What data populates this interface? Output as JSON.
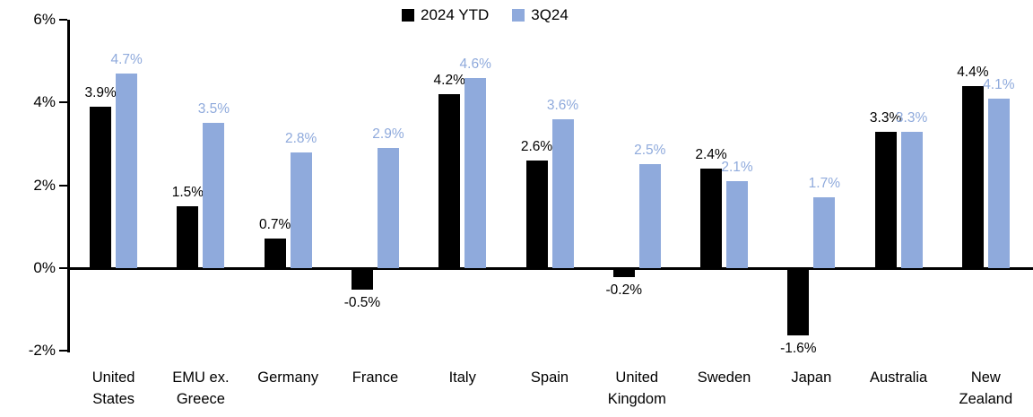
{
  "legend": [
    {
      "label": "2024 YTD",
      "color": "#000000"
    },
    {
      "label": "3Q24",
      "color": "#8FAADC"
    }
  ],
  "chart_data": {
    "type": "bar",
    "title": "",
    "xlabel": "",
    "ylabel": "",
    "categories": [
      "United States",
      "EMU ex. Greece",
      "Germany",
      "France",
      "Italy",
      "Spain",
      "United Kingdom",
      "Sweden",
      "Japan",
      "Australia",
      "New Zealand"
    ],
    "series": [
      {
        "name": "2024 YTD",
        "color": "#000000",
        "values": [
          3.9,
          1.5,
          0.7,
          -0.5,
          4.2,
          2.6,
          -0.2,
          2.4,
          -1.6,
          3.3,
          4.4
        ],
        "labels": [
          "3.9%",
          "1.5%",
          "0.7%",
          "-0.5%",
          "4.2%",
          "2.6%",
          "-0.2%",
          "2.4%",
          "-1.6%",
          "3.3%",
          "4.4%"
        ]
      },
      {
        "name": "3Q24",
        "color": "#8FAADC",
        "values": [
          4.7,
          3.5,
          2.8,
          2.9,
          4.6,
          3.6,
          2.5,
          2.1,
          1.7,
          3.3,
          4.1
        ],
        "labels": [
          "4.7%",
          "3.5%",
          "2.8%",
          "2.9%",
          "4.6%",
          "3.6%",
          "2.5%",
          "2.1%",
          "1.7%",
          "3.3%",
          "4.1%"
        ]
      }
    ],
    "ylim": [
      -2,
      6
    ],
    "yticks": [
      {
        "value": 6,
        "label": "6%"
      },
      {
        "value": 4,
        "label": "4%"
      },
      {
        "value": 2,
        "label": "2%"
      },
      {
        "value": 0,
        "label": "0%"
      },
      {
        "value": -2,
        "label": "-2%"
      }
    ],
    "grid": false,
    "legend_position": "top-center"
  }
}
